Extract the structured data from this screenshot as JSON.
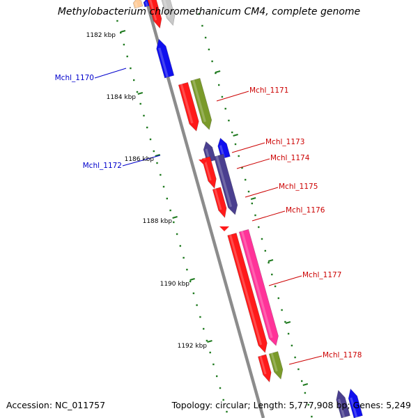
{
  "title": "Methylobacterium chloromethanicum CM4, complete genome",
  "accession": "Accession: NC_011757",
  "summary": "Topology: circular; Length: 5,777,908 bp; Genes: 5,249",
  "colors": {
    "backbone": "#8c8c8c",
    "tick": "#1f7a1f",
    "label_forward": "#cc0000",
    "label_reverse": "#0000cc",
    "red": "#ff1a1a",
    "olive": "#7a9a2a",
    "navy": "#4a3f8f",
    "blue": "#1010ee",
    "pink": "#ff3399",
    "grey": "#c8c8c8",
    "orange": "#ffcc99"
  },
  "ruler": {
    "labels": [
      "1182 kbp",
      "1184 kbp",
      "1186 kbp",
      "1188 kbp",
      "1190 kbp",
      "1192 kbp"
    ]
  },
  "genes": {
    "forward": [
      {
        "label": "Mchl_1171"
      },
      {
        "label": "Mchl_1173"
      },
      {
        "label": "Mchl_1174"
      },
      {
        "label": "Mchl_1175"
      },
      {
        "label": "Mchl_1176"
      },
      {
        "label": "Mchl_1177"
      },
      {
        "label": "Mchl_1178"
      }
    ],
    "reverse": [
      {
        "label": "Mchl_1170"
      },
      {
        "label": "Mchl_1172"
      }
    ]
  }
}
